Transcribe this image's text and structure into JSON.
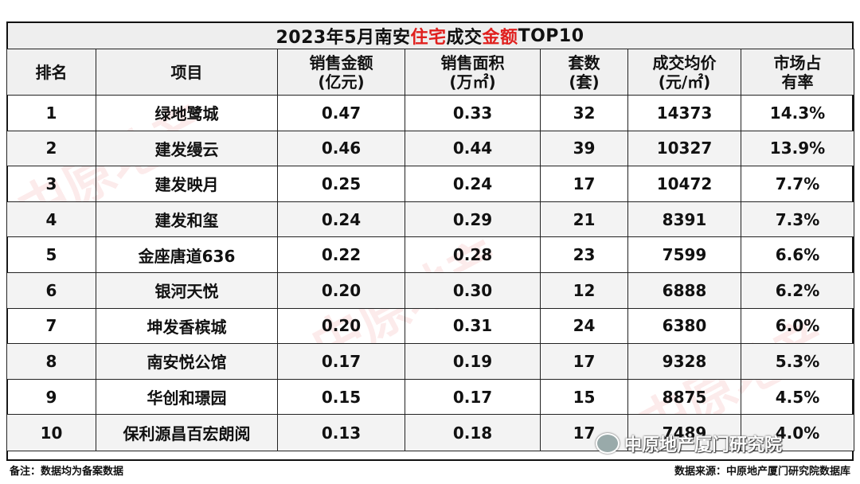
{
  "title": {
    "part1": "2023年5月南安",
    "highlight1": "住宅",
    "part2": "成交",
    "highlight2": "金额",
    "part3": "TOP10"
  },
  "colors": {
    "highlight": "#e0201e",
    "header_bg": "#f0f0f0",
    "stripe_bg": "#f3f3f3"
  },
  "headers": [
    [
      "排名"
    ],
    [
      "项目"
    ],
    [
      "销售金额",
      "(亿元)"
    ],
    [
      "销售面积",
      "(万㎡)"
    ],
    [
      "套数",
      "(套)"
    ],
    [
      "成交均价",
      "(元/㎡)"
    ],
    [
      "市场占",
      "有率"
    ]
  ],
  "rows": [
    [
      "1",
      "绿地鹭城",
      "0.47",
      "0.33",
      "32",
      "14373",
      "14.3%"
    ],
    [
      "2",
      "建发缦云",
      "0.46",
      "0.44",
      "39",
      "10327",
      "13.9%"
    ],
    [
      "3",
      "建发映月",
      "0.25",
      "0.24",
      "17",
      "10472",
      "7.7%"
    ],
    [
      "4",
      "建发和玺",
      "0.24",
      "0.29",
      "21",
      "8391",
      "7.3%"
    ],
    [
      "5",
      "金座唐道636",
      "0.22",
      "0.28",
      "23",
      "7599",
      "6.6%"
    ],
    [
      "6",
      "银河天悦",
      "0.20",
      "0.30",
      "12",
      "6888",
      "6.2%"
    ],
    [
      "7",
      "坤发香槟城",
      "0.20",
      "0.31",
      "24",
      "6380",
      "6.0%"
    ],
    [
      "8",
      "南安悦公馆",
      "0.17",
      "0.19",
      "17",
      "9328",
      "5.3%"
    ],
    [
      "9",
      "华创和璟园",
      "0.15",
      "0.17",
      "15",
      "8875",
      "4.5%"
    ],
    [
      "10",
      "保利源昌百宏朗阅",
      "0.13",
      "0.18",
      "17",
      "7489",
      "4.0%"
    ]
  ],
  "footer": {
    "note": "备注：数据均为备案数据",
    "source": "数据来源：中原地产厦门研究院数据库",
    "wechat_label": "中原地产厦门研究院",
    "wechat_icon": "wechat-icon"
  },
  "watermark": {
    "text": "中原地产"
  }
}
